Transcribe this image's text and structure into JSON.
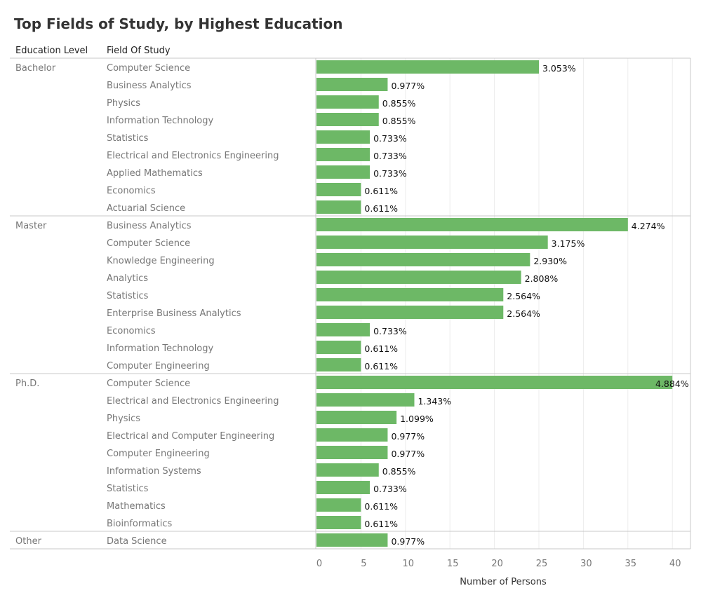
{
  "title": "Top Fields of Study, by Highest Education",
  "headers": {
    "education_level": "Education Level",
    "field_of_study": "Field Of Study"
  },
  "colors": {
    "bar": "#6db866",
    "grid": "#ececec",
    "separator": "#c8c8c8",
    "text_muted": "#777777"
  },
  "chart_data": {
    "type": "bar",
    "orientation": "horizontal",
    "title": "Top Fields of Study, by Highest Education",
    "xlabel": "Number of Persons",
    "ylabel": "",
    "xlim": [
      0,
      41
    ],
    "xticks": [
      0,
      5,
      10,
      15,
      20,
      25,
      30,
      35,
      40
    ],
    "label_format": "percent of total",
    "groups": [
      {
        "name": "Bachelor",
        "items": [
          {
            "field": "Computer Science",
            "value": 25,
            "label": "3.053%"
          },
          {
            "field": "Business Analytics",
            "value": 8,
            "label": "0.977%"
          },
          {
            "field": "Physics",
            "value": 7,
            "label": "0.855%"
          },
          {
            "field": "Information Technology",
            "value": 7,
            "label": "0.855%"
          },
          {
            "field": "Statistics",
            "value": 6,
            "label": "0.733%"
          },
          {
            "field": "Electrical and Electronics Engineering",
            "value": 6,
            "label": "0.733%"
          },
          {
            "field": "Applied Mathematics",
            "value": 6,
            "label": "0.733%"
          },
          {
            "field": "Economics",
            "value": 5,
            "label": "0.611%"
          },
          {
            "field": "Actuarial Science",
            "value": 5,
            "label": "0.611%"
          }
        ]
      },
      {
        "name": "Master",
        "items": [
          {
            "field": "Business Analytics",
            "value": 35,
            "label": "4.274%"
          },
          {
            "field": "Computer Science",
            "value": 26,
            "label": "3.175%"
          },
          {
            "field": "Knowledge Engineering",
            "value": 24,
            "label": "2.930%"
          },
          {
            "field": "Analytics",
            "value": 23,
            "label": "2.808%"
          },
          {
            "field": "Statistics",
            "value": 21,
            "label": "2.564%"
          },
          {
            "field": "Enterprise Business Analytics",
            "value": 21,
            "label": "2.564%"
          },
          {
            "field": "Economics",
            "value": 6,
            "label": "0.733%"
          },
          {
            "field": "Information Technology",
            "value": 5,
            "label": "0.611%"
          },
          {
            "field": "Computer Engineering",
            "value": 5,
            "label": "0.611%"
          }
        ]
      },
      {
        "name": "Ph.D.",
        "items": [
          {
            "field": "Computer Science",
            "value": 40,
            "label": "4.884%"
          },
          {
            "field": "Electrical and Electronics Engineering",
            "value": 11,
            "label": "1.343%"
          },
          {
            "field": "Physics",
            "value": 9,
            "label": "1.099%"
          },
          {
            "field": "Electrical and Computer Engineering",
            "value": 8,
            "label": "0.977%"
          },
          {
            "field": "Computer Engineering",
            "value": 8,
            "label": "0.977%"
          },
          {
            "field": "Information Systems",
            "value": 7,
            "label": "0.855%"
          },
          {
            "field": "Statistics",
            "value": 6,
            "label": "0.733%"
          },
          {
            "field": "Mathematics",
            "value": 5,
            "label": "0.611%"
          },
          {
            "field": "Bioinformatics",
            "value": 5,
            "label": "0.611%"
          }
        ]
      },
      {
        "name": "Other",
        "items": [
          {
            "field": "Data Science",
            "value": 8,
            "label": "0.977%"
          }
        ]
      }
    ]
  }
}
